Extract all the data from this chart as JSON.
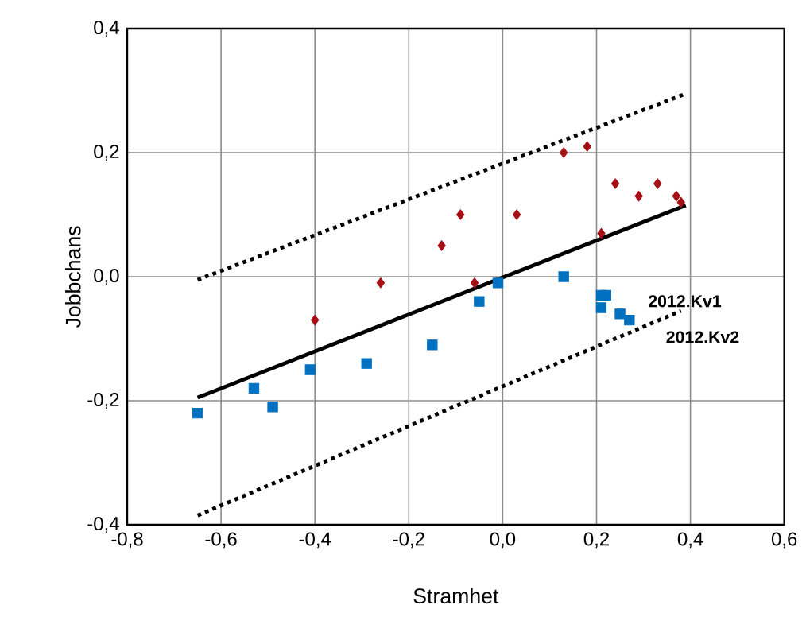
{
  "chart_data": {
    "type": "scatter",
    "xlabel": "Stramhet",
    "ylabel": "Jobbchans",
    "xlim": [
      -0.8,
      0.6
    ],
    "ylim": [
      -0.4,
      0.4
    ],
    "xticks": [
      {
        "value": -0.8,
        "label": "-0,8"
      },
      {
        "value": -0.6,
        "label": "-0,6"
      },
      {
        "value": -0.4,
        "label": "-0,4"
      },
      {
        "value": -0.2,
        "label": "-0,2"
      },
      {
        "value": 0,
        "label": "0,0"
      },
      {
        "value": 0.2,
        "label": "0,2"
      },
      {
        "value": 0.4,
        "label": "0,4"
      },
      {
        "value": 0.6,
        "label": "0,6"
      }
    ],
    "yticks": [
      {
        "value": -0.4,
        "label": "-0,4"
      },
      {
        "value": -0.2,
        "label": "-0,2"
      },
      {
        "value": 0,
        "label": "0,0"
      },
      {
        "value": 0.2,
        "label": "0,2"
      },
      {
        "value": 0.4,
        "label": "0,4"
      }
    ],
    "grid": true,
    "series": [
      {
        "marker": "diamond",
        "color": "#a50f15",
        "x": [
          -0.4,
          -0.26,
          -0.13,
          -0.09,
          -0.06,
          0.03,
          0.13,
          0.18,
          0.21,
          0.24,
          0.29,
          0.33,
          0.37,
          0.38
        ],
        "values": [
          -0.07,
          -0.01,
          0.05,
          0.1,
          -0.01,
          0.1,
          0.2,
          0.21,
          0.07,
          0.15,
          0.13,
          0.15,
          0.13,
          0.12
        ]
      },
      {
        "marker": "square",
        "color": "#0070c0",
        "x": [
          -0.65,
          -0.53,
          -0.49,
          -0.41,
          -0.29,
          -0.15,
          -0.05,
          -0.01,
          0.13,
          0.21,
          0.22,
          0.21,
          0.25,
          0.27
        ],
        "values": [
          -0.22,
          -0.18,
          -0.21,
          -0.15,
          -0.14,
          -0.11,
          -0.04,
          -0.01,
          0.0,
          -0.03,
          -0.03,
          -0.05,
          -0.06,
          -0.07
        ]
      },
      {
        "type": "line",
        "marker": "none",
        "line_style": "solid",
        "color": "#000000",
        "x": [
          -0.65,
          0.39
        ],
        "values": [
          -0.195,
          0.115
        ]
      },
      {
        "type": "line",
        "marker": "none",
        "line_style": "dotted",
        "color": "#000000",
        "x": [
          -0.65,
          0.39
        ],
        "values": [
          -0.005,
          0.295
        ]
      },
      {
        "type": "line",
        "marker": "none",
        "line_style": "dotted",
        "color": "#000000",
        "x": [
          -0.65,
          0.38
        ],
        "values": [
          -0.385,
          -0.055
        ]
      }
    ],
    "annotations": [
      {
        "text": "2012.Kv1",
        "x": 0.25,
        "y": -0.06
      },
      {
        "text": "2012.Kv2",
        "x": 0.27,
        "y": -0.07
      }
    ]
  }
}
